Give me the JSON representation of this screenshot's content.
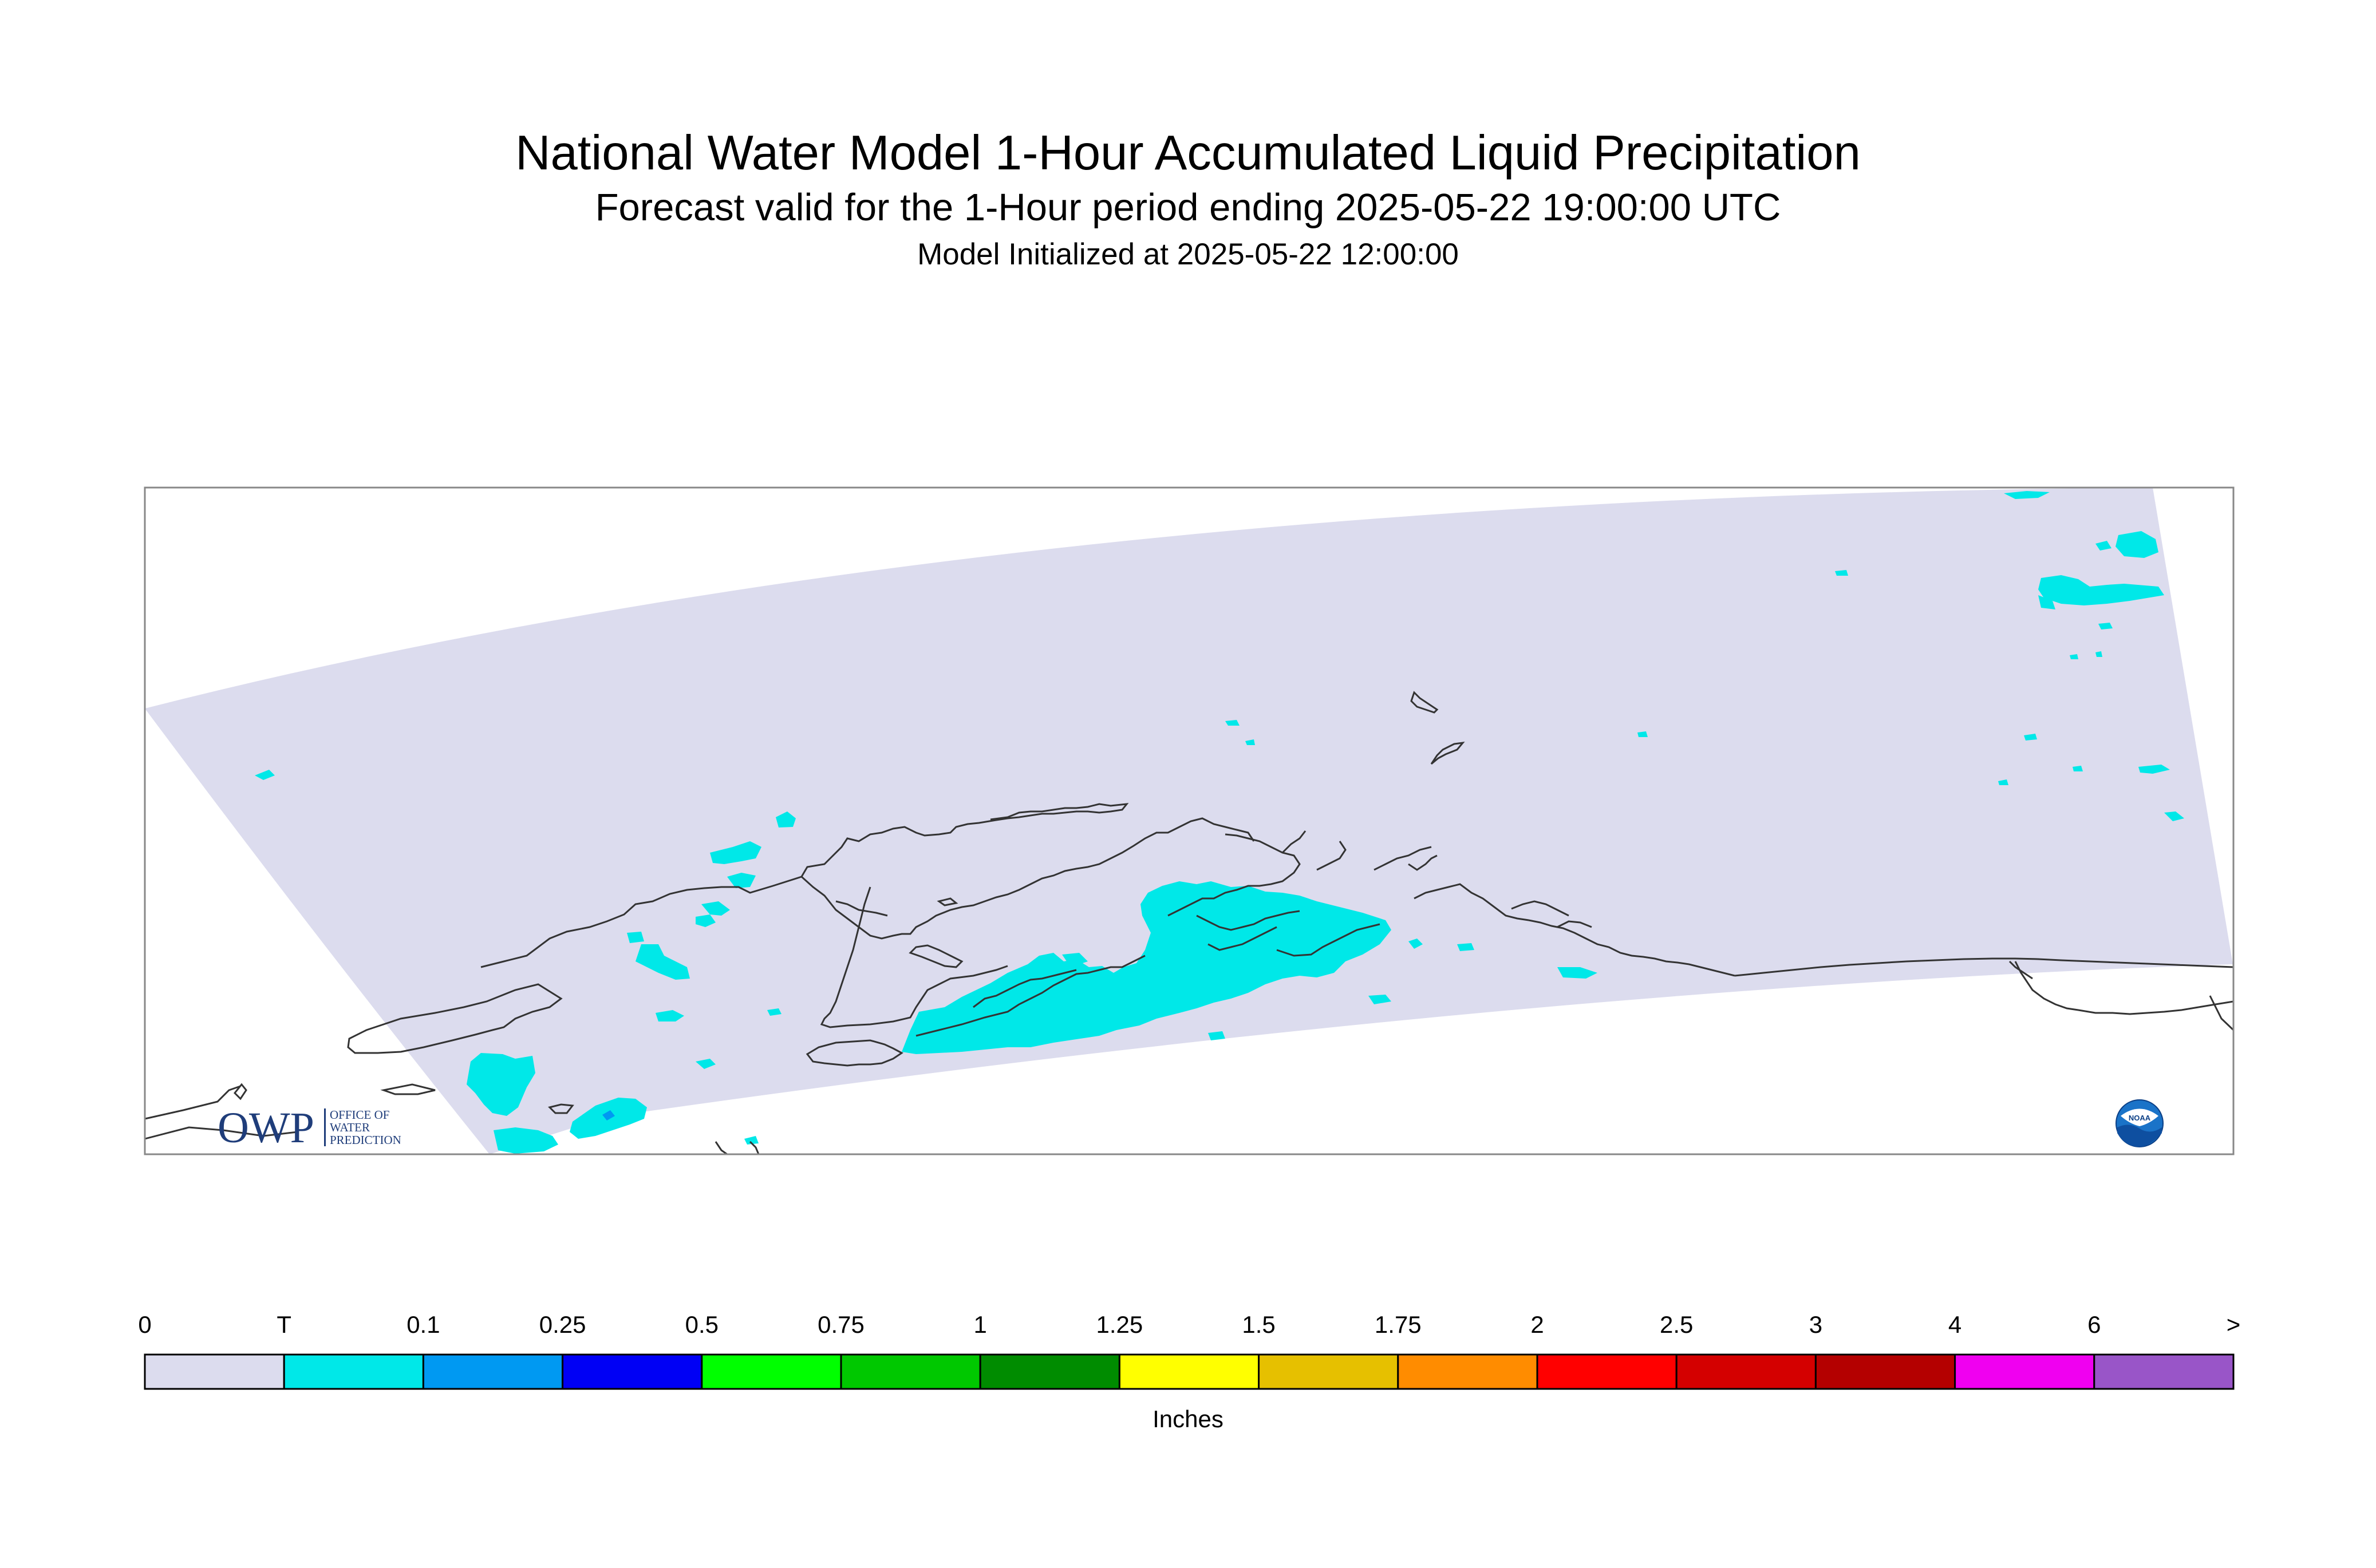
{
  "title": "National Water Model 1-Hour Accumulated Liquid Precipitation",
  "subtitle": "Forecast valid for the 1-Hour period ending 2025-05-22 19:00:00 UTC",
  "init_line": "Model Initialized at 2025-05-22 12:00:00",
  "colors": {
    "no_precip": "#dcdcee",
    "trace": "#00e8e8",
    "coastline": "#333333",
    "frame": "#888888"
  },
  "legend": {
    "labels": [
      "0",
      "T",
      "0.1",
      "0.25",
      "0.5",
      "0.75",
      "1",
      "1.25",
      "1.5",
      "1.75",
      "2",
      "2.5",
      "3",
      "4",
      "6",
      ">"
    ],
    "colors": [
      "#dcdcee",
      "#00e8e8",
      "#0099f2",
      "#0000f5",
      "#00ff00",
      "#00c800",
      "#008c00",
      "#ffff00",
      "#e6c000",
      "#ff8c00",
      "#ff0000",
      "#d40000",
      "#b40000",
      "#f000f0",
      "#9955c8"
    ],
    "units": "Inches"
  },
  "logos": {
    "owp_big": "OWP",
    "owp_line1": "OFFICE OF",
    "owp_line2": "WATER",
    "owp_line3": "PREDICTION",
    "noaa": "NOAA"
  }
}
